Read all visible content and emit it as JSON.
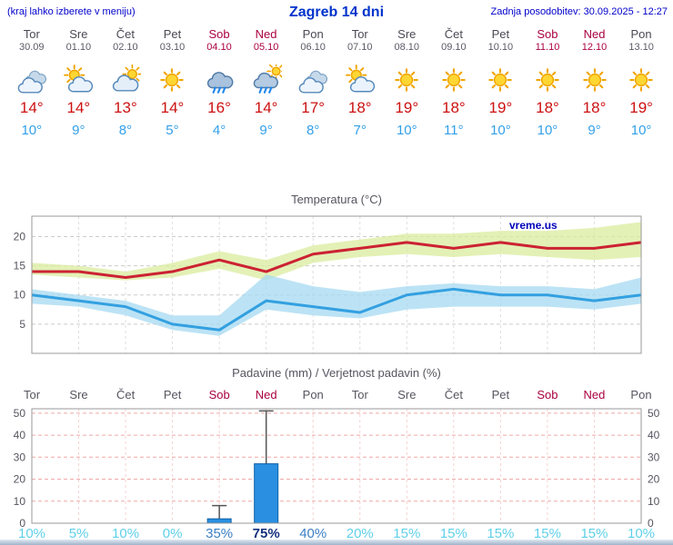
{
  "header": {
    "hint": "(kraj lahko izberete v meniju)",
    "title": "Zagreb 14 dni",
    "updated": "Zadnja posodobitev: 30.09.2025 - 12:27"
  },
  "colors": {
    "header_blue": "#0000cc",
    "day_gray": "#4a4a55",
    "weekend_red": "#aa0040",
    "temp_high": "#cc1111",
    "temp_low": "#33a0e8",
    "grid_gray": "#cccccc",
    "grid_pink": "#f0a8a8",
    "frame_gray": "#999999",
    "bar_fill": "#2a8fe0",
    "bar_stroke": "#1060a8",
    "prob_low": "#5fd0e8",
    "prob_mid": "#3b7fc4",
    "prob_high": "#15317e",
    "watermark_blue": "#0000bb"
  },
  "days": [
    {
      "name": "Tor",
      "date": "30.09",
      "weekend": false,
      "icon": "cloudy",
      "high": "14°",
      "low": "10°"
    },
    {
      "name": "Sre",
      "date": "01.10",
      "weekend": false,
      "icon": "partly-cloudy",
      "high": "14°",
      "low": "9°"
    },
    {
      "name": "Čet",
      "date": "02.10",
      "weekend": false,
      "icon": "mostly-cloudy",
      "high": "13°",
      "low": "8°"
    },
    {
      "name": "Pet",
      "date": "03.10",
      "weekend": false,
      "icon": "sunny",
      "high": "14°",
      "low": "5°"
    },
    {
      "name": "Sob",
      "date": "04.10",
      "weekend": true,
      "icon": "rain",
      "high": "16°",
      "low": "4°"
    },
    {
      "name": "Ned",
      "date": "05.10",
      "weekend": true,
      "icon": "showers",
      "high": "14°",
      "low": "9°"
    },
    {
      "name": "Pon",
      "date": "06.10",
      "weekend": false,
      "icon": "cloudy",
      "high": "17°",
      "low": "8°"
    },
    {
      "name": "Tor",
      "date": "07.10",
      "weekend": false,
      "icon": "partly-cloudy",
      "high": "18°",
      "low": "7°"
    },
    {
      "name": "Sre",
      "date": "08.10",
      "weekend": false,
      "icon": "sunny",
      "high": "19°",
      "low": "10°"
    },
    {
      "name": "Čet",
      "date": "09.10",
      "weekend": false,
      "icon": "sunny",
      "high": "18°",
      "low": "11°"
    },
    {
      "name": "Pet",
      "date": "10.10",
      "weekend": false,
      "icon": "sunny",
      "high": "19°",
      "low": "10°"
    },
    {
      "name": "Sob",
      "date": "11.10",
      "weekend": true,
      "icon": "sunny",
      "high": "18°",
      "low": "10°"
    },
    {
      "name": "Ned",
      "date": "12.10",
      "weekend": true,
      "icon": "sunny",
      "high": "18°",
      "low": "9°"
    },
    {
      "name": "Pon",
      "date": "13.10",
      "weekend": false,
      "icon": "sunny",
      "high": "19°",
      "low": "10°"
    }
  ],
  "chart_data": [
    {
      "type": "line",
      "title": "Temperatura (°C)",
      "watermark": "vreme.us",
      "x_labels": [
        "Tor 30.09",
        "Sre 01.10",
        "Čet 02.10",
        "Pet 03.10",
        "Sob 04.10",
        "Ned 05.10",
        "Pon 06.10",
        "Tor 07.10",
        "Sre 08.10",
        "Čet 09.10",
        "Pet 10.10",
        "Sob 11.10",
        "Ned 12.10",
        "Pon 13.10"
      ],
      "ylim": [
        0,
        23.5
      ],
      "yticks": [
        5,
        10,
        15,
        20
      ],
      "grid": true,
      "series": [
        {
          "name": "max temperature",
          "color": "#cc2233",
          "values": [
            14,
            14,
            13,
            14,
            16,
            14,
            17,
            18,
            19,
            18,
            19,
            18,
            18,
            19
          ]
        },
        {
          "name": "min temperature",
          "color": "#33a0e0",
          "values": [
            10,
            9,
            8,
            5,
            4,
            9,
            8,
            7,
            10,
            11,
            10,
            10,
            9,
            10
          ]
        }
      ],
      "bands": [
        {
          "name": "max temperature range",
          "color": "#d9ec9e",
          "upper": [
            15.5,
            15,
            14,
            15.5,
            17.5,
            16,
            18.5,
            19.5,
            20.5,
            20.5,
            21,
            21,
            21.5,
            22.5
          ],
          "lower": [
            13.5,
            13,
            12.5,
            13,
            14.5,
            12.5,
            15.5,
            16.5,
            17,
            16.5,
            17,
            16.5,
            16,
            16.5
          ]
        },
        {
          "name": "min temperature range",
          "color": "#a6d9f2",
          "upper": [
            11,
            10,
            9,
            6.5,
            6.5,
            13.5,
            11.5,
            10.5,
            11.5,
            12,
            11.5,
            11.5,
            11,
            13
          ],
          "lower": [
            8.5,
            8,
            6.5,
            4,
            3,
            7.5,
            6.5,
            6,
            7.5,
            8,
            8,
            8,
            7.5,
            8.5
          ]
        }
      ]
    },
    {
      "type": "bar",
      "title": "Padavine (mm) / Verjetnost padavin (%)",
      "x_labels": [
        "Tor",
        "Sre",
        "Čet",
        "Pet",
        "Sob",
        "Ned",
        "Pon",
        "Tor",
        "Sre",
        "Čet",
        "Pet",
        "Sob",
        "Ned",
        "Pon"
      ],
      "weekend": [
        false,
        false,
        false,
        false,
        true,
        true,
        false,
        false,
        false,
        false,
        false,
        true,
        true,
        false
      ],
      "ylim": [
        0,
        52
      ],
      "yticks": [
        0,
        10,
        20,
        30,
        40,
        50
      ],
      "grid": true,
      "values": [
        0,
        0,
        0,
        0,
        2,
        27,
        0,
        0,
        0,
        0,
        0,
        0,
        0,
        0
      ],
      "whisker_max": [
        0,
        0,
        0,
        0,
        8,
        51,
        0,
        0,
        0,
        0,
        0,
        0,
        0,
        0
      ],
      "probabilities": [
        {
          "text": "10%",
          "level": "low"
        },
        {
          "text": "5%",
          "level": "low"
        },
        {
          "text": "10%",
          "level": "low"
        },
        {
          "text": "0%",
          "level": "low"
        },
        {
          "text": "35%",
          "level": "mid"
        },
        {
          "text": "75%",
          "level": "high"
        },
        {
          "text": "40%",
          "level": "mid"
        },
        {
          "text": "20%",
          "level": "low"
        },
        {
          "text": "15%",
          "level": "low"
        },
        {
          "text": "15%",
          "level": "low"
        },
        {
          "text": "15%",
          "level": "low"
        },
        {
          "text": "15%",
          "level": "low"
        },
        {
          "text": "15%",
          "level": "low"
        },
        {
          "text": "10%",
          "level": "low"
        }
      ]
    }
  ]
}
